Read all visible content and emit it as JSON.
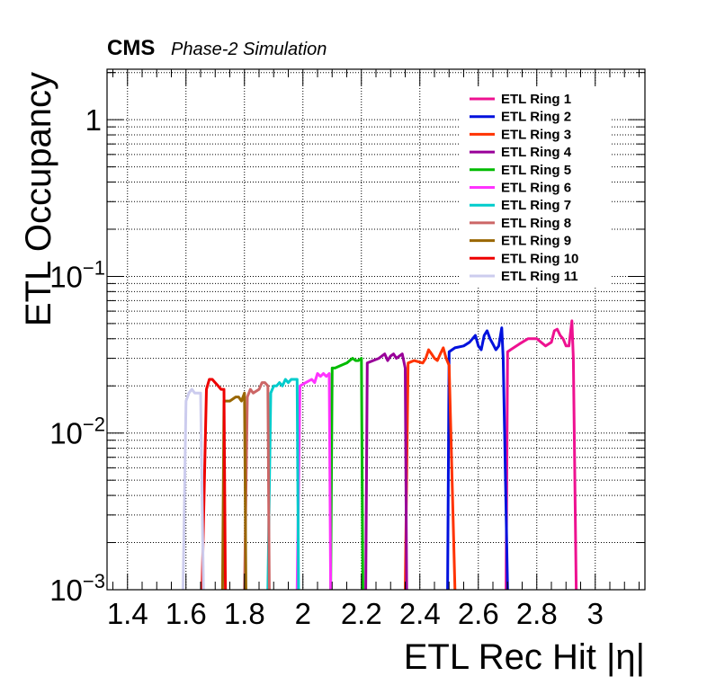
{
  "header": {
    "experiment": "CMS",
    "label": "Phase-2 Simulation"
  },
  "chart_data": {
    "type": "line",
    "xlabel": "ETL Rec Hit |η|",
    "ylabel": "ETL Occupancy",
    "xlim": [
      1.33,
      3.17
    ],
    "ylim": [
      0.001,
      2.1
    ],
    "ylog": true,
    "grid": true,
    "legend_position": "top-right",
    "x_ticks": [
      "1.4",
      "1.6",
      "1.8",
      "2",
      "2.2",
      "2.4",
      "2.6",
      "2.8",
      "3"
    ],
    "y_ticks": [
      {
        "value": 1,
        "label": "1"
      },
      {
        "value": 0.1,
        "label": "10",
        "exp": "−1"
      },
      {
        "value": 0.01,
        "label": "10",
        "exp": "−2"
      },
      {
        "value": 0.001,
        "label": "10",
        "exp": "−3"
      }
    ],
    "series": [
      {
        "name": "ETL Ring 1",
        "color": "#ee1190",
        "x": [
          2.695,
          2.7,
          2.71,
          2.74,
          2.77,
          2.8,
          2.83,
          2.85,
          2.86,
          2.87,
          2.88,
          2.89,
          2.9,
          2.91,
          2.92,
          2.925,
          2.935
        ],
        "y": [
          0.001,
          0.033,
          0.034,
          0.037,
          0.04,
          0.04,
          0.036,
          0.038,
          0.045,
          0.046,
          0.042,
          0.04,
          0.036,
          0.036,
          0.052,
          0.03,
          0.001
        ]
      },
      {
        "name": "ETL Ring 2",
        "color": "#0011dd",
        "x": [
          2.495,
          2.5,
          2.52,
          2.55,
          2.57,
          2.59,
          2.6,
          2.61,
          2.62,
          2.63,
          2.64,
          2.65,
          2.66,
          2.67,
          2.68,
          2.685,
          2.7
        ],
        "y": [
          0.001,
          0.033,
          0.035,
          0.036,
          0.038,
          0.042,
          0.036,
          0.034,
          0.042,
          0.045,
          0.04,
          0.037,
          0.034,
          0.036,
          0.047,
          0.03,
          0.001
        ]
      },
      {
        "name": "ETL Ring 3",
        "color": "#ff3300",
        "x": [
          2.35,
          2.36,
          2.38,
          2.41,
          2.42,
          2.43,
          2.44,
          2.45,
          2.46,
          2.47,
          2.48,
          2.49,
          2.5,
          2.52
        ],
        "y": [
          0.001,
          0.028,
          0.029,
          0.028,
          0.03,
          0.034,
          0.032,
          0.03,
          0.029,
          0.032,
          0.035,
          0.03,
          0.027,
          0.001
        ]
      },
      {
        "name": "ETL Ring 4",
        "color": "#990099",
        "x": [
          2.215,
          2.22,
          2.24,
          2.26,
          2.28,
          2.29,
          2.3,
          2.31,
          2.32,
          2.33,
          2.34,
          2.35,
          2.355
        ],
        "y": [
          0.001,
          0.028,
          0.029,
          0.03,
          0.032,
          0.029,
          0.031,
          0.032,
          0.03,
          0.031,
          0.032,
          0.026,
          0.001
        ]
      },
      {
        "name": "ETL Ring 5",
        "color": "#00bb00",
        "x": [
          2.095,
          2.1,
          2.11,
          2.13,
          2.15,
          2.16,
          2.17,
          2.18,
          2.19,
          2.2,
          2.205
        ],
        "y": [
          0.001,
          0.026,
          0.026,
          0.027,
          0.028,
          0.029,
          0.03,
          0.029,
          0.029,
          0.03,
          0.001
        ]
      },
      {
        "name": "ETL Ring 6",
        "color": "#ff33ff",
        "x": [
          1.98,
          1.99,
          2.01,
          2.03,
          2.04,
          2.05,
          2.06,
          2.07,
          2.08,
          2.09,
          2.095
        ],
        "y": [
          0.001,
          0.02,
          0.021,
          0.022,
          0.021,
          0.024,
          0.023,
          0.024,
          0.023,
          0.024,
          0.001
        ]
      },
      {
        "name": "ETL Ring 7",
        "color": "#00cccc",
        "x": [
          1.88,
          1.89,
          1.9,
          1.91,
          1.92,
          1.93,
          1.94,
          1.95,
          1.96,
          1.97,
          1.98,
          1.985
        ],
        "y": [
          0.001,
          0.018,
          0.02,
          0.02,
          0.021,
          0.02,
          0.022,
          0.021,
          0.022,
          0.022,
          0.022,
          0.001
        ]
      },
      {
        "name": "ETL Ring 8",
        "color": "#cc6666",
        "x": [
          1.8,
          1.81,
          1.82,
          1.83,
          1.85,
          1.86,
          1.87,
          1.88,
          1.885
        ],
        "y": [
          0.001,
          0.017,
          0.019,
          0.018,
          0.019,
          0.021,
          0.021,
          0.02,
          0.001
        ]
      },
      {
        "name": "ETL Ring 9",
        "color": "#996600",
        "x": [
          1.725,
          1.73,
          1.75,
          1.77,
          1.78,
          1.79,
          1.8,
          1.805
        ],
        "y": [
          0.001,
          0.016,
          0.016,
          0.017,
          0.017,
          0.016,
          0.018,
          0.001
        ]
      },
      {
        "name": "ETL Ring 10",
        "color": "#ee0000",
        "x": [
          1.655,
          1.67,
          1.68,
          1.69,
          1.7,
          1.71,
          1.72,
          1.73,
          1.735
        ],
        "y": [
          0.001,
          0.019,
          0.022,
          0.022,
          0.021,
          0.02,
          0.019,
          0.019,
          0.001
        ]
      },
      {
        "name": "ETL Ring 11",
        "color": "#ccccee",
        "x": [
          1.59,
          1.6,
          1.61,
          1.62,
          1.63,
          1.64,
          1.65,
          1.66
        ],
        "y": [
          0.001,
          0.016,
          0.018,
          0.019,
          0.018,
          0.018,
          0.018,
          0.001
        ]
      }
    ]
  }
}
